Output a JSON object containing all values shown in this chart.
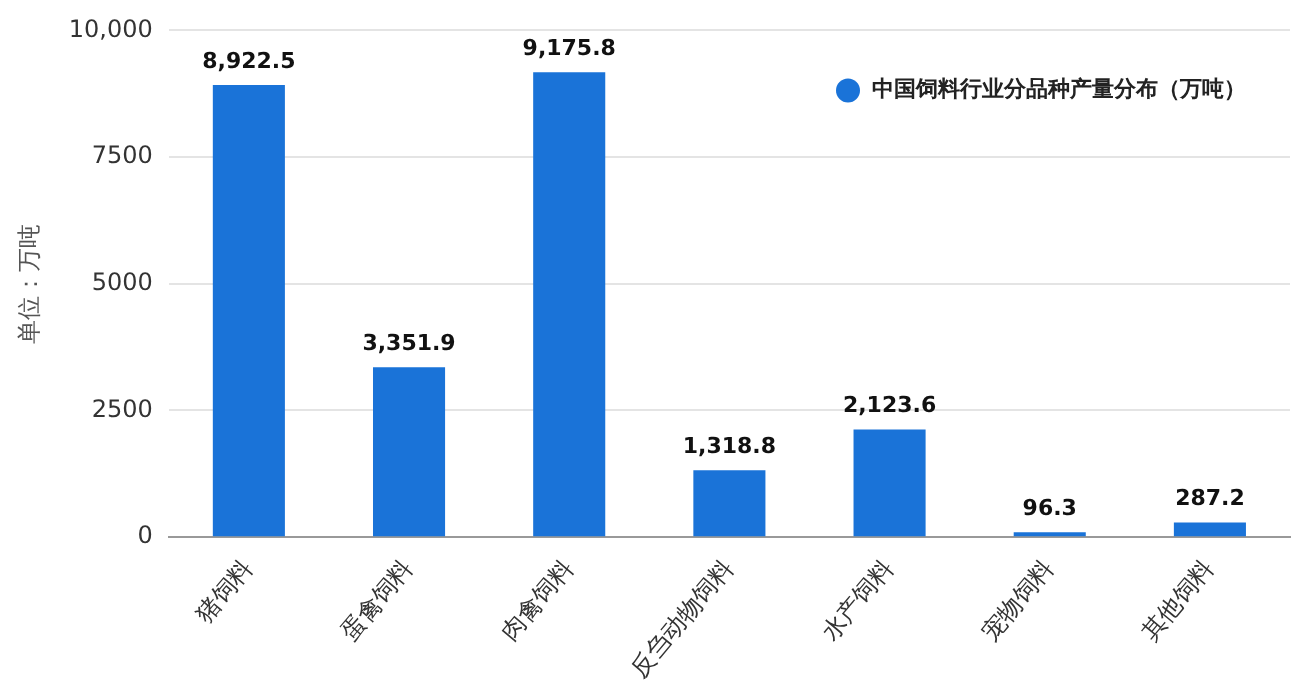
{
  "chart_data": {
    "type": "bar",
    "ylabel": "单位：万吨",
    "categories": [
      "猪饲料",
      "蛋禽饲料",
      "肉禽饲料",
      "反刍动物饲料",
      "水产饲料",
      "宠物饲料",
      "其他饲料"
    ],
    "series": [
      {
        "name": "中国饲料行业分品种产量分布（万吨）",
        "color": "#1a73d8",
        "values": [
          8922.5,
          3351.9,
          9175.8,
          1318.8,
          2123.6,
          96.3,
          287.2
        ],
        "value_labels": [
          "8,922.5",
          "3,351.9",
          "9,175.8",
          "1,318.8",
          "2,123.6",
          "96.3",
          "287.2"
        ]
      }
    ],
    "ylim": [
      0,
      10000
    ],
    "yticks": [
      0,
      2500,
      5000,
      7500,
      {
        "value": 10000,
        "label": "10,000"
      }
    ],
    "grid": "y",
    "legend": "top right"
  }
}
